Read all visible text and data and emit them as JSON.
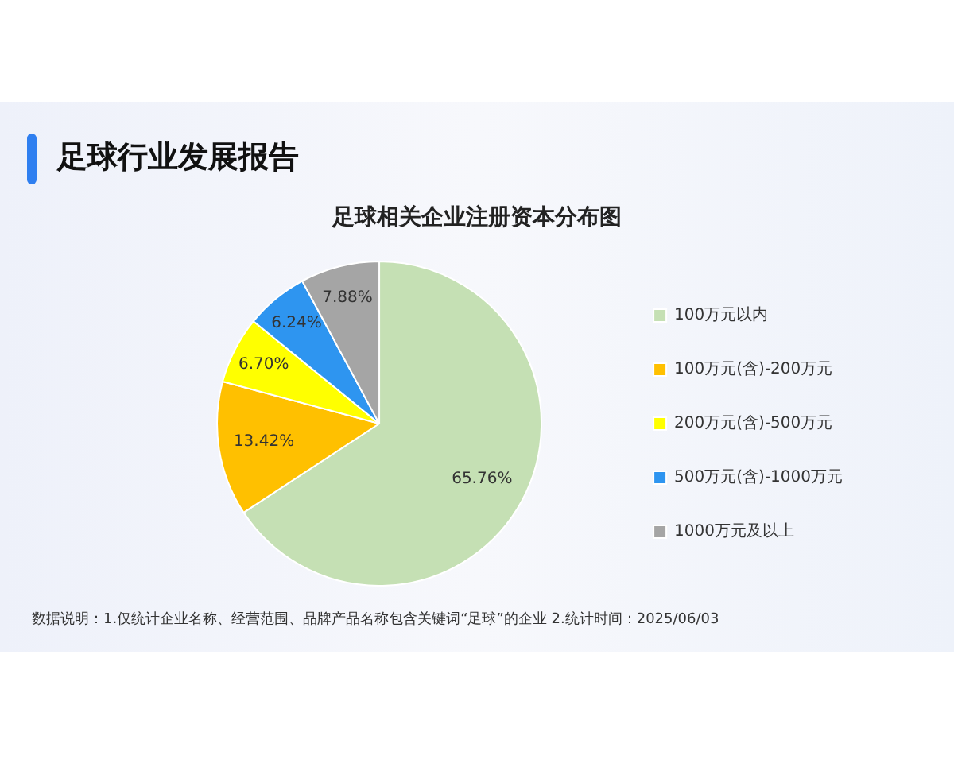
{
  "chart_data": {
    "type": "pie",
    "title": "足球行业发展报告",
    "subtitle": "足球相关企业注册资本分布图",
    "categories": [
      "100万元以内",
      "100万元(含)-200万元",
      "200万元(含)-500万元",
      "500万元(含)-1000万元",
      "1000万元及以上"
    ],
    "values": [
      65.76,
      13.42,
      6.7,
      6.24,
      7.88
    ],
    "value_labels": [
      "65.76%",
      "13.42%",
      "6.70%",
      "6.24%",
      "7.88%"
    ],
    "colors": [
      "#c5e0b4",
      "#ffc000",
      "#ffff00",
      "#2e95f0",
      "#a5a5a5"
    ],
    "legend": "right",
    "annotations": [
      "数据说明：1.仅统计企业名称、经营范围、品牌产品名称包含关键词“足球”的企业   2.统计时间：2025/06/03"
    ]
  }
}
